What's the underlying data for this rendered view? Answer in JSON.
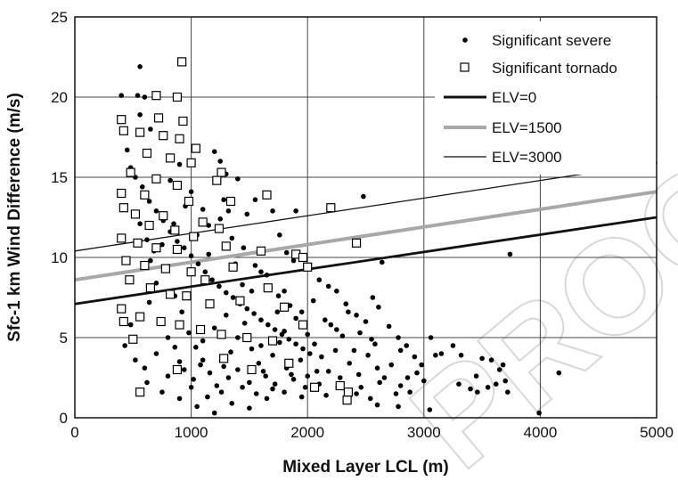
{
  "chart_data": {
    "type": "scatter",
    "xlabel": "Mixed Layer LCL (m)",
    "ylabel": "Sfc-1 km Wind Difference (m/s)",
    "xlim": [
      0,
      5000
    ],
    "ylim": [
      0,
      25
    ],
    "x_ticks": [
      "0",
      "1000",
      "2000",
      "3000",
      "4000",
      "5000"
    ],
    "y_ticks": [
      "0",
      "5",
      "10",
      "15",
      "20",
      "25"
    ],
    "grid": true,
    "legend_position": "top-right",
    "watermark": "PROOF",
    "series": [
      {
        "name": "Significant severe",
        "marker": "dot",
        "color": "#000000",
        "points": [
          [
            400,
            20.1
          ],
          [
            560,
            21.9
          ],
          [
            540,
            20.1
          ],
          [
            600,
            20.0
          ],
          [
            720,
            18.8
          ],
          [
            560,
            18.9
          ],
          [
            650,
            18.0
          ],
          [
            450,
            16.7
          ],
          [
            480,
            15.6
          ],
          [
            520,
            15.0
          ],
          [
            580,
            14.4
          ],
          [
            640,
            13.5
          ],
          [
            700,
            12.9
          ],
          [
            760,
            12.3
          ],
          [
            820,
            11.6
          ],
          [
            880,
            11.0
          ],
          [
            940,
            10.6
          ],
          [
            1000,
            10.1
          ],
          [
            1060,
            9.6
          ],
          [
            1120,
            9.1
          ],
          [
            1180,
            8.6
          ],
          [
            1240,
            8.2
          ],
          [
            1300,
            7.8
          ],
          [
            1360,
            7.5
          ],
          [
            1420,
            7.1
          ],
          [
            1480,
            6.8
          ],
          [
            1540,
            6.5
          ],
          [
            1600,
            6.1
          ],
          [
            1660,
            5.8
          ],
          [
            1720,
            5.5
          ],
          [
            1780,
            5.2
          ],
          [
            1840,
            4.9
          ],
          [
            1900,
            4.6
          ],
          [
            1960,
            4.3
          ],
          [
            2020,
            4.0
          ],
          [
            1200,
            16.6
          ],
          [
            1250,
            16.0
          ],
          [
            1300,
            15.2
          ],
          [
            1400,
            14.9
          ],
          [
            1550,
            13.6
          ],
          [
            1480,
            12.7
          ],
          [
            1700,
            12.9
          ],
          [
            1900,
            12.9
          ],
          [
            1760,
            11.4
          ],
          [
            1820,
            10.3
          ],
          [
            1880,
            9.8
          ],
          [
            2020,
            9.3
          ],
          [
            2100,
            8.6
          ],
          [
            2180,
            8.2
          ],
          [
            2250,
            7.9
          ],
          [
            2330,
            7.1
          ],
          [
            2420,
            6.4
          ],
          [
            2500,
            6.0
          ],
          [
            2560,
            7.5
          ],
          [
            2610,
            6.9
          ],
          [
            2480,
            13.8
          ],
          [
            2640,
            9.7
          ],
          [
            2700,
            5.7
          ],
          [
            2780,
            5.0
          ],
          [
            2850,
            4.5
          ],
          [
            2920,
            3.8
          ],
          [
            2980,
            3.3
          ],
          [
            3060,
            5.0
          ],
          [
            3100,
            3.9
          ],
          [
            3150,
            4.0
          ],
          [
            3250,
            4.5
          ],
          [
            3300,
            2.1
          ],
          [
            3320,
            3.9
          ],
          [
            3400,
            1.8
          ],
          [
            3450,
            2.6
          ],
          [
            3500,
            3.7
          ],
          [
            3580,
            3.6
          ],
          [
            3620,
            2.1
          ],
          [
            3650,
            3.0
          ],
          [
            3680,
            3.3
          ],
          [
            3700,
            2.3
          ],
          [
            3720,
            1.6
          ],
          [
            3740,
            10.2
          ],
          [
            3550,
            1.9
          ],
          [
            3460,
            1.6
          ],
          [
            4160,
            2.8
          ],
          [
            3990,
            0.3
          ],
          [
            3050,
            0.5
          ],
          [
            2780,
            0.7
          ],
          [
            2600,
            0.8
          ],
          [
            2420,
            1.5
          ],
          [
            2260,
            1.9
          ],
          [
            2100,
            2.1
          ],
          [
            1950,
            1.3
          ],
          [
            1800,
            1.6
          ],
          [
            1650,
            1.2
          ],
          [
            1500,
            0.6
          ],
          [
            1350,
            0.9
          ],
          [
            1200,
            0.3
          ],
          [
            1050,
            0.7
          ],
          [
            900,
            1.2
          ],
          [
            750,
            1.6
          ],
          [
            620,
            2.2
          ],
          [
            520,
            3.6
          ],
          [
            430,
            4.5
          ],
          [
            480,
            5.8
          ],
          [
            560,
            6.4
          ],
          [
            640,
            7.2
          ],
          [
            700,
            8.4
          ],
          [
            780,
            9.3
          ],
          [
            860,
            7.6
          ],
          [
            920,
            6.6
          ],
          [
            980,
            5.3
          ],
          [
            1040,
            4.4
          ],
          [
            1100,
            3.6
          ],
          [
            1160,
            2.8
          ],
          [
            1220,
            2.0
          ],
          [
            1280,
            3.2
          ],
          [
            1340,
            4.1
          ],
          [
            1400,
            5.0
          ],
          [
            1460,
            5.9
          ],
          [
            1520,
            4.3
          ],
          [
            1580,
            3.4
          ],
          [
            1640,
            2.6
          ],
          [
            1700,
            3.9
          ],
          [
            1760,
            4.7
          ],
          [
            1820,
            3.1
          ],
          [
            1880,
            2.4
          ],
          [
            1940,
            3.6
          ],
          [
            2000,
            5.2
          ],
          [
            2060,
            4.6
          ],
          [
            2120,
            3.8
          ],
          [
            2180,
            2.9
          ],
          [
            2240,
            4.2
          ],
          [
            2300,
            5.1
          ],
          [
            2360,
            3.4
          ],
          [
            2440,
            2.7
          ],
          [
            2520,
            3.9
          ],
          [
            2580,
            4.6
          ],
          [
            2660,
            2.5
          ],
          [
            2720,
            3.3
          ],
          [
            2800,
            2.0
          ],
          [
            2880,
            1.6
          ],
          [
            2940,
            2.8
          ],
          [
            600,
            3.1
          ],
          [
            700,
            4.0
          ],
          [
            800,
            2.6
          ],
          [
            900,
            3.5
          ],
          [
            1000,
            1.9
          ],
          [
            1100,
            4.8
          ],
          [
            1200,
            5.6
          ],
          [
            1300,
            6.4
          ],
          [
            1400,
            3.0
          ],
          [
            1500,
            2.2
          ],
          [
            1600,
            4.5
          ],
          [
            1700,
            1.8
          ],
          [
            1800,
            5.4
          ],
          [
            1900,
            6.2
          ],
          [
            2000,
            2.6
          ],
          [
            2200,
            5.8
          ],
          [
            2400,
            4.2
          ],
          [
            2600,
            3.1
          ],
          [
            2800,
            4.2
          ],
          [
            3000,
            2.3
          ],
          [
            650,
            9.8
          ],
          [
            750,
            10.8
          ],
          [
            850,
            12.1
          ],
          [
            950,
            13.2
          ],
          [
            1050,
            11.4
          ],
          [
            1150,
            10.2
          ],
          [
            1250,
            12.4
          ],
          [
            1350,
            11.2
          ],
          [
            1450,
            10.6
          ],
          [
            1550,
            9.5
          ],
          [
            1650,
            8.9
          ],
          [
            1750,
            7.6
          ],
          [
            1850,
            7.0
          ],
          [
            1950,
            6.6
          ],
          [
            2050,
            7.3
          ],
          [
            2150,
            6.1
          ],
          [
            2250,
            5.5
          ],
          [
            2350,
            6.6
          ],
          [
            2450,
            5.3
          ],
          [
            2550,
            4.9
          ],
          [
            820,
            14.8
          ],
          [
            900,
            15.8
          ],
          [
            1000,
            14.1
          ],
          [
            1100,
            13.0
          ],
          [
            1150,
            12.0
          ],
          [
            1280,
            13.6
          ],
          [
            1320,
            12.9
          ],
          [
            1380,
            9.6
          ],
          [
            1440,
            8.3
          ],
          [
            1520,
            7.9
          ],
          [
            1600,
            9.1
          ],
          [
            1680,
            8.1
          ],
          [
            1740,
            6.6
          ],
          [
            1800,
            7.9
          ],
          [
            560,
            12.1
          ],
          [
            620,
            11.1
          ],
          [
            680,
            10.4
          ],
          [
            740,
            6.1
          ],
          [
            800,
            5.0
          ],
          [
            860,
            4.4
          ],
          [
            940,
            3.0
          ],
          [
            1020,
            2.4
          ],
          [
            1080,
            3.3
          ],
          [
            1140,
            1.3
          ],
          [
            1260,
            1.6
          ],
          [
            1320,
            2.5
          ],
          [
            1440,
            1.9
          ],
          [
            1560,
            1.5
          ],
          [
            1620,
            2.9
          ],
          [
            1720,
            2.1
          ],
          [
            1860,
            2.7
          ],
          [
            1980,
            1.9
          ],
          [
            2080,
            2.9
          ],
          [
            2160,
            1.4
          ],
          [
            2280,
            2.5
          ],
          [
            2340,
            1.1
          ],
          [
            2460,
            1.9
          ],
          [
            2540,
            1.2
          ],
          [
            2620,
            2.2
          ],
          [
            2760,
            1.5
          ],
          [
            2860,
            2.5
          ]
        ]
      },
      {
        "name": "Significant tornado",
        "marker": "open-square",
        "color": "#000000",
        "points": [
          [
            920,
            22.2
          ],
          [
            700,
            20.1
          ],
          [
            880,
            20.0
          ],
          [
            400,
            18.6
          ],
          [
            720,
            18.7
          ],
          [
            930,
            18.5
          ],
          [
            420,
            17.9
          ],
          [
            560,
            17.8
          ],
          [
            760,
            17.6
          ],
          [
            900,
            17.4
          ],
          [
            1040,
            16.8
          ],
          [
            620,
            16.5
          ],
          [
            820,
            16.2
          ],
          [
            1000,
            15.9
          ],
          [
            480,
            15.3
          ],
          [
            700,
            14.9
          ],
          [
            1260,
            15.3
          ],
          [
            880,
            14.5
          ],
          [
            400,
            14.0
          ],
          [
            600,
            13.9
          ],
          [
            1220,
            14.8
          ],
          [
            1650,
            13.9
          ],
          [
            2200,
            13.1
          ],
          [
            980,
            13.5
          ],
          [
            420,
            13.1
          ],
          [
            520,
            12.7
          ],
          [
            760,
            12.6
          ],
          [
            1100,
            12.2
          ],
          [
            1340,
            13.5
          ],
          [
            640,
            12.0
          ],
          [
            860,
            11.7
          ],
          [
            1020,
            11.3
          ],
          [
            400,
            11.2
          ],
          [
            540,
            10.9
          ],
          [
            700,
            10.6
          ],
          [
            880,
            10.5
          ],
          [
            1240,
            11.8
          ],
          [
            2420,
            10.9
          ],
          [
            1300,
            10.7
          ],
          [
            1600,
            10.4
          ],
          [
            1900,
            10.2
          ],
          [
            2000,
            9.4
          ],
          [
            1960,
            10.0
          ],
          [
            440,
            9.8
          ],
          [
            600,
            9.5
          ],
          [
            780,
            9.3
          ],
          [
            1000,
            9.1
          ],
          [
            1120,
            8.6
          ],
          [
            1360,
            9.4
          ],
          [
            470,
            8.6
          ],
          [
            650,
            8.1
          ],
          [
            820,
            7.7
          ],
          [
            960,
            7.6
          ],
          [
            1160,
            7.1
          ],
          [
            1420,
            7.3
          ],
          [
            1660,
            8.1
          ],
          [
            1800,
            6.9
          ],
          [
            400,
            6.8
          ],
          [
            560,
            6.3
          ],
          [
            740,
            6.0
          ],
          [
            900,
            5.8
          ],
          [
            1080,
            5.5
          ],
          [
            1260,
            5.2
          ],
          [
            1480,
            5.0
          ],
          [
            1700,
            4.8
          ],
          [
            1960,
            5.8
          ],
          [
            500,
            4.9
          ],
          [
            420,
            6.0
          ],
          [
            2280,
            2.0
          ],
          [
            2350,
            1.6
          ],
          [
            2340,
            1.1
          ],
          [
            2060,
            1.9
          ],
          [
            1520,
            3.0
          ],
          [
            1840,
            3.4
          ],
          [
            1280,
            3.7
          ],
          [
            560,
            1.6
          ],
          [
            880,
            3.0
          ]
        ]
      }
    ],
    "lines": [
      {
        "name": "ELV=0",
        "x": [
          0,
          5000
        ],
        "y": [
          7.1,
          12.5
        ],
        "color": "#111111",
        "style": "thick"
      },
      {
        "name": "ELV=1500",
        "x": [
          0,
          5000
        ],
        "y": [
          8.6,
          14.1
        ],
        "color": "#a8a8a8",
        "style": "thick"
      },
      {
        "name": "ELV=3000",
        "x": [
          0,
          5000
        ],
        "y": [
          10.4,
          15.9
        ],
        "color": "#111111",
        "style": "thin"
      }
    ]
  }
}
